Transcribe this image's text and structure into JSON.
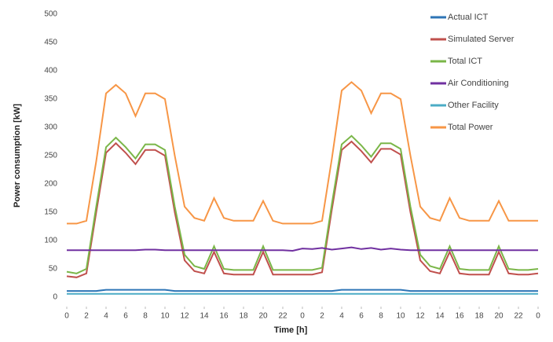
{
  "chart_data": {
    "type": "line",
    "x_label": "Time [h]",
    "y_label": "Power consumption [kW]",
    "x": [
      0,
      1,
      2,
      3,
      4,
      5,
      6,
      7,
      8,
      9,
      10,
      11,
      12,
      13,
      14,
      15,
      16,
      17,
      18,
      19,
      20,
      21,
      22,
      23,
      24,
      25,
      26,
      27,
      28,
      29,
      30,
      31,
      32,
      33,
      34,
      35,
      36,
      37,
      38,
      39,
      40,
      41,
      42,
      43,
      44,
      45,
      46,
      47,
      48
    ],
    "xlim": [
      0,
      48
    ],
    "xticks": [
      0,
      2,
      4,
      6,
      8,
      10,
      12,
      14,
      16,
      18,
      20,
      22,
      {
        "value": 24,
        "label": "0"
      },
      {
        "value": 26,
        "label": "2"
      },
      {
        "value": 28,
        "label": "4"
      },
      {
        "value": 30,
        "label": "6"
      },
      {
        "value": 32,
        "label": "8"
      },
      {
        "value": 34,
        "label": "10"
      },
      {
        "value": 36,
        "label": "12"
      },
      {
        "value": 38,
        "label": "14"
      },
      {
        "value": 40,
        "label": "16"
      },
      {
        "value": 42,
        "label": "18"
      },
      {
        "value": 44,
        "label": "20"
      },
      {
        "value": 46,
        "label": "22"
      },
      {
        "value": 48,
        "label": "0"
      }
    ],
    "ylim": [
      0,
      500
    ],
    "yticks": [
      0,
      50,
      100,
      150,
      200,
      250,
      300,
      350,
      400,
      450,
      500
    ],
    "grid": false,
    "legend": "top-right",
    "series": [
      {
        "name": "Actual ICT",
        "color": "#2e75b6",
        "values": [
          11,
          11,
          11,
          11,
          13,
          13,
          13,
          13,
          13,
          13,
          13,
          11,
          11,
          11,
          11,
          11,
          11,
          11,
          11,
          11,
          11,
          11,
          11,
          11,
          11,
          11,
          11,
          11,
          13,
          13,
          13,
          13,
          13,
          13,
          13,
          11,
          11,
          11,
          11,
          11,
          11,
          11,
          11,
          11,
          11,
          11,
          11,
          11,
          11
        ]
      },
      {
        "name": "Simulated Server",
        "color": "#c0504d",
        "values": [
          37,
          35,
          42,
          150,
          255,
          272,
          255,
          235,
          260,
          260,
          250,
          150,
          65,
          46,
          42,
          80,
          42,
          40,
          40,
          40,
          80,
          40,
          40,
          40,
          40,
          40,
          44,
          155,
          260,
          275,
          258,
          238,
          262,
          262,
          252,
          150,
          65,
          46,
          42,
          80,
          42,
          40,
          40,
          40,
          80,
          42,
          40,
          40,
          42
        ]
      },
      {
        "name": "Total ICT",
        "color": "#7ab648",
        "values": [
          45,
          42,
          50,
          160,
          265,
          282,
          265,
          245,
          270,
          270,
          260,
          160,
          75,
          55,
          50,
          90,
          50,
          48,
          48,
          48,
          90,
          48,
          48,
          48,
          48,
          48,
          52,
          165,
          270,
          285,
          268,
          248,
          272,
          272,
          262,
          160,
          75,
          55,
          50,
          90,
          50,
          48,
          48,
          48,
          90,
          50,
          48,
          48,
          50
        ]
      },
      {
        "name": "Air Conditioning",
        "color": "#7030a0",
        "values": [
          83,
          83,
          83,
          83,
          83,
          83,
          83,
          83,
          84,
          84,
          83,
          83,
          83,
          83,
          83,
          83,
          83,
          83,
          83,
          83,
          83,
          83,
          83,
          82,
          86,
          85,
          87,
          84,
          86,
          88,
          85,
          87,
          84,
          86,
          84,
          83,
          83,
          83,
          83,
          83,
          83,
          83,
          83,
          83,
          83,
          83,
          83,
          83,
          83
        ]
      },
      {
        "name": "Other Facility",
        "color": "#4bacc6",
        "values": [
          6,
          6,
          6,
          6,
          6,
          6,
          6,
          6,
          6,
          6,
          6,
          6,
          6,
          6,
          6,
          6,
          6,
          6,
          6,
          6,
          6,
          6,
          6,
          6,
          6,
          6,
          6,
          6,
          6,
          6,
          6,
          6,
          6,
          6,
          6,
          6,
          6,
          6,
          6,
          6,
          6,
          6,
          6,
          6,
          6,
          6,
          6,
          6,
          6
        ]
      },
      {
        "name": "Total Power",
        "color": "#f79646",
        "values": [
          130,
          130,
          135,
          240,
          360,
          375,
          360,
          320,
          360,
          360,
          350,
          250,
          160,
          140,
          135,
          175,
          140,
          135,
          135,
          135,
          170,
          135,
          130,
          130,
          130,
          130,
          135,
          245,
          365,
          380,
          365,
          325,
          360,
          360,
          350,
          250,
          160,
          140,
          135,
          175,
          140,
          135,
          135,
          135,
          170,
          135,
          135,
          135,
          135
        ]
      }
    ]
  }
}
